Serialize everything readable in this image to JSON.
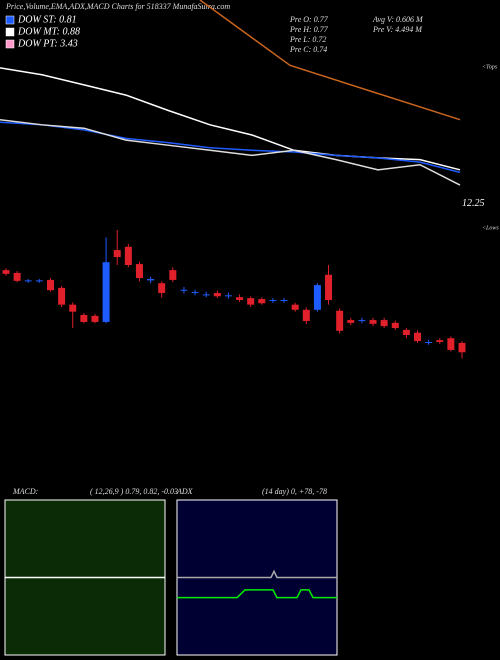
{
  "header": {
    "title": "Price,Volume,EMA,ADX,MACD Charts for 518337 MunafaSutra.com",
    "legend": [
      {
        "label": "DOW ST: 0.81",
        "color": "#1e5cff"
      },
      {
        "label": "DOW MT: 0.88",
        "color": "#ffffff"
      },
      {
        "label": "DOW PT: 3.43",
        "color": "#ff99cc"
      }
    ],
    "stats": [
      "Pre  O: 0.77",
      "Pre  H: 0.77",
      "Pre  L: 0.72",
      "Pre  C: 0.74",
      "Avg V: 0.606  M",
      "Pre  V: 4.494  M"
    ]
  },
  "chart_data": [
    {
      "type": "line",
      "annotation": "<Tops",
      "xlim": [
        0,
        460
      ],
      "ylim": [
        12,
        14.65
      ],
      "yticks": [
        12.25
      ],
      "series": [
        {
          "color": "#ffffff",
          "x": [
            0,
            42,
            84,
            126,
            168,
            210,
            252,
            294,
            336,
            378,
            420,
            460
          ],
          "values": [
            13.85,
            13.77,
            13.65,
            13.53,
            13.35,
            13.18,
            13.06,
            12.88,
            12.82,
            12.79,
            12.77,
            12.65
          ]
        },
        {
          "color": "#1e5cff",
          "x": [
            0,
            42,
            84,
            126,
            168,
            210,
            252,
            294,
            336,
            378,
            420,
            460
          ],
          "values": [
            13.21,
            13.18,
            13.12,
            13.02,
            12.97,
            12.91,
            12.88,
            12.86,
            12.82,
            12.79,
            12.74,
            12.62
          ]
        },
        {
          "color": "#dddddd",
          "x": [
            0,
            42,
            84,
            126,
            168,
            210,
            252,
            294,
            336,
            378,
            420,
            460
          ],
          "values": [
            13.24,
            13.18,
            13.14,
            13.0,
            12.94,
            12.88,
            12.82,
            12.88,
            12.77,
            12.65,
            12.71,
            12.47
          ]
        },
        {
          "color": "#c8641e",
          "x": [
            200,
            290,
            460
          ],
          "values": [
            14.65,
            13.88,
            13.24
          ]
        }
      ]
    },
    {
      "type": "candlestick",
      "annotation": "<Lows",
      "ylim": [
        0.68,
        0.98
      ],
      "up_color": "#1e5cff",
      "down_color": "#e0202a",
      "open": [
        0.894,
        0.888,
        0.87,
        0.87,
        0.873,
        0.856,
        0.82,
        0.798,
        0.796,
        0.783,
        0.937,
        0.944,
        0.907,
        0.872,
        0.866,
        0.894,
        0.85,
        0.845,
        0.84,
        0.845,
        0.838,
        0.836,
        0.834,
        0.832,
        0.828,
        0.828,
        0.82,
        0.809,
        0.809,
        0.884,
        0.807,
        0.787,
        0.785,
        0.787,
        0.787,
        0.781,
        0.766,
        0.76,
        0.738,
        0.744,
        0.748,
        0.738
      ],
      "high": [
        0.898,
        0.892,
        0.875,
        0.875,
        0.877,
        0.86,
        0.825,
        0.802,
        0.8,
        0.964,
        0.98,
        0.95,
        0.912,
        0.88,
        0.87,
        0.9,
        0.858,
        0.852,
        0.848,
        0.85,
        0.846,
        0.842,
        0.838,
        0.836,
        0.834,
        0.834,
        0.824,
        0.814,
        0.866,
        0.905,
        0.812,
        0.792,
        0.792,
        0.792,
        0.792,
        0.786,
        0.77,
        0.765,
        0.745,
        0.748,
        0.752,
        0.742
      ],
      "low": [
        0.882,
        0.868,
        0.867,
        0.867,
        0.848,
        0.815,
        0.77,
        0.78,
        0.78,
        0.78,
        0.905,
        0.9,
        0.87,
        0.866,
        0.835,
        0.868,
        0.844,
        0.84,
        0.836,
        0.834,
        0.833,
        0.826,
        0.815,
        0.82,
        0.824,
        0.824,
        0.805,
        0.778,
        0.805,
        0.82,
        0.758,
        0.776,
        0.78,
        0.774,
        0.77,
        0.766,
        0.748,
        0.738,
        0.734,
        0.736,
        0.72,
        0.705
      ],
      "close": [
        0.886,
        0.871,
        0.872,
        0.872,
        0.851,
        0.82,
        0.805,
        0.783,
        0.783,
        0.911,
        0.922,
        0.905,
        0.877,
        0.875,
        0.845,
        0.873,
        0.852,
        0.847,
        0.842,
        0.838,
        0.84,
        0.83,
        0.82,
        0.823,
        0.83,
        0.83,
        0.809,
        0.785,
        0.862,
        0.83,
        0.764,
        0.781,
        0.787,
        0.779,
        0.774,
        0.77,
        0.755,
        0.742,
        0.74,
        0.74,
        0.723,
        0.718
      ]
    },
    {
      "type": "line",
      "title": "MACD:",
      "subtitle": "( 12,26,9 ) 0.79, 0.82, -0.03",
      "background": "#0b2a06",
      "xlim": [
        0,
        160
      ],
      "ylim": [
        -1,
        1
      ],
      "series": [
        {
          "color": "#ffffff",
          "x": [
            0,
            50,
            100,
            160
          ],
          "values": [
            0,
            0,
            0,
            0
          ]
        }
      ]
    },
    {
      "type": "line",
      "title": "ADX",
      "subtitle": "(14  day) 0, +78, -78",
      "background": "#000033",
      "xlim": [
        0,
        160
      ],
      "ylim": [
        0,
        100
      ],
      "series": [
        {
          "color": "#aaaaaa",
          "x": [
            0,
            40,
            80,
            94,
            97,
            100,
            140,
            160
          ],
          "values": [
            50,
            50,
            50,
            50,
            54,
            50,
            50,
            50
          ]
        },
        {
          "color": "#00ee00",
          "x": [
            0,
            20,
            40,
            60,
            68,
            80,
            96,
            100,
            120,
            124,
            132,
            136,
            160
          ],
          "values": [
            37,
            37,
            37,
            37,
            42,
            42,
            42,
            37,
            37,
            42,
            42,
            37,
            37
          ]
        }
      ]
    }
  ]
}
